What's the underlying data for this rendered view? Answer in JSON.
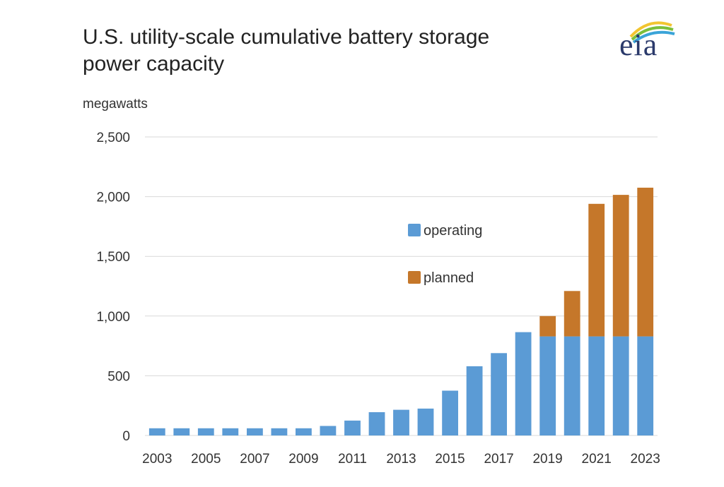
{
  "chart_data": {
    "type": "bar",
    "stacked": true,
    "title": "U.S. utility-scale cumulative battery storage",
    "subtitle": "power capacity",
    "ylabel": "megawatts",
    "ylim": [
      0,
      2500
    ],
    "yticks": [
      "0",
      "500",
      "1,000",
      "1,500",
      "2,000",
      "2,500"
    ],
    "ytick_values": [
      0,
      500,
      1000,
      1500,
      2000,
      2500
    ],
    "grid": true,
    "legend_position": "center-right",
    "categories": [
      "2003",
      "2004",
      "2005",
      "2006",
      "2007",
      "2008",
      "2009",
      "2010",
      "2011",
      "2012",
      "2013",
      "2014",
      "2015",
      "2016",
      "2017",
      "2018",
      "2019",
      "2020",
      "2021",
      "2022",
      "2023"
    ],
    "xtick_labels": [
      "2003",
      "2005",
      "2007",
      "2009",
      "2011",
      "2013",
      "2015",
      "2017",
      "2019",
      "2021",
      "2023"
    ],
    "series": [
      {
        "name": "operating",
        "color": "#5b9bd5",
        "values": [
          60,
          60,
          60,
          60,
          60,
          60,
          60,
          80,
          125,
          195,
          215,
          225,
          375,
          580,
          690,
          865,
          830,
          830,
          830,
          830,
          830
        ]
      },
      {
        "name": "planned",
        "color": "#c5772a",
        "values": [
          0,
          0,
          0,
          0,
          0,
          0,
          0,
          0,
          0,
          0,
          0,
          0,
          0,
          0,
          0,
          0,
          170,
          380,
          1110,
          1185,
          1245
        ]
      }
    ]
  },
  "logo": {
    "text": "eia",
    "colors": [
      "#f2c530",
      "#7bbf3b",
      "#3aa4d8"
    ]
  }
}
